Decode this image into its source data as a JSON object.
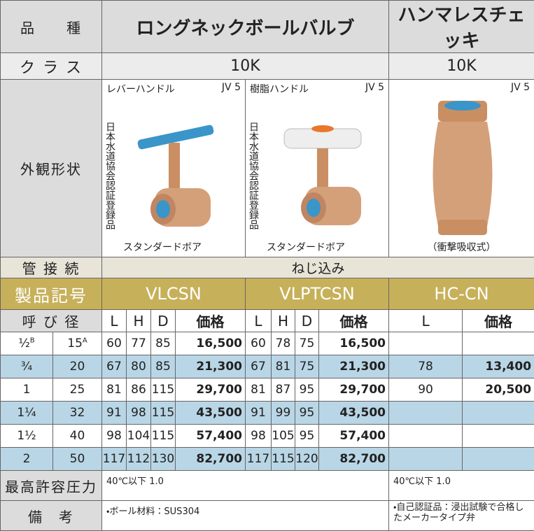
{
  "kind": {
    "label": "品　　種",
    "ball": "ロングネックボールバルブ",
    "check": "ハンマレスチェッキ"
  },
  "class": {
    "label": "ク ラ ス",
    "ball": "10K",
    "check": "10K"
  },
  "appearance": {
    "label": "外観形状",
    "lever": {
      "name": "レバーハンドル",
      "code": "JV 5",
      "cert": "日本水道協会認証登録品",
      "bore": "スタンダードボア"
    },
    "resin": {
      "name": "樹脂ハンドル",
      "code": "JV 5",
      "cert": "日本水道協会認証登録品",
      "bore": "スタンダードボア"
    },
    "check": {
      "code": "JV 5",
      "note": "（衝撃吸収式）"
    }
  },
  "connection": {
    "label": "管 接 続",
    "value": "ねじ込み"
  },
  "product": {
    "label": "製品記号",
    "codes": [
      "VLCSN",
      "VLPTCSN",
      "HC-CN"
    ]
  },
  "size_header": {
    "label": "呼 び 径",
    "columns": [
      "L",
      "H",
      "D",
      "価格",
      "L",
      "H",
      "D",
      "価格",
      "L",
      "価格"
    ]
  },
  "rows": [
    {
      "inch": "½",
      "inch_unit": "B",
      "mm": "15",
      "mm_unit": "A",
      "cells": [
        "60",
        "77",
        "85",
        "16,500",
        "60",
        "78",
        "75",
        "16,500",
        null,
        null
      ]
    },
    {
      "inch": "¾",
      "mm": "20",
      "cells": [
        "67",
        "80",
        "85",
        "21,300",
        "67",
        "81",
        "75",
        "21,300",
        "78",
        "13,400"
      ]
    },
    {
      "inch": "1",
      "mm": "25",
      "cells": [
        "81",
        "86",
        "115",
        "29,700",
        "81",
        "87",
        "95",
        "29,700",
        "90",
        "20,500"
      ]
    },
    {
      "inch": "1¼",
      "mm": "32",
      "cells": [
        "91",
        "98",
        "115",
        "43,500",
        "91",
        "99",
        "95",
        "43,500",
        null,
        null
      ]
    },
    {
      "inch": "1½",
      "mm": "40",
      "cells": [
        "98",
        "104",
        "115",
        "57,400",
        "98",
        "105",
        "95",
        "57,400",
        null,
        null
      ]
    },
    {
      "inch": "2",
      "mm": "50",
      "cells": [
        "117",
        "112",
        "130",
        "82,700",
        "117",
        "115",
        "120",
        "82,700",
        null,
        null
      ]
    }
  ],
  "pressure": {
    "label": "最高許容圧力",
    "ball": "40℃以下 1.0",
    "check": "40℃以下 1.0"
  },
  "remarks": {
    "label": "備　考",
    "ball": "・ボール材料：SUS304",
    "check": "・自己認証品：浸出試験で合格したメーカータイプ弁"
  }
}
